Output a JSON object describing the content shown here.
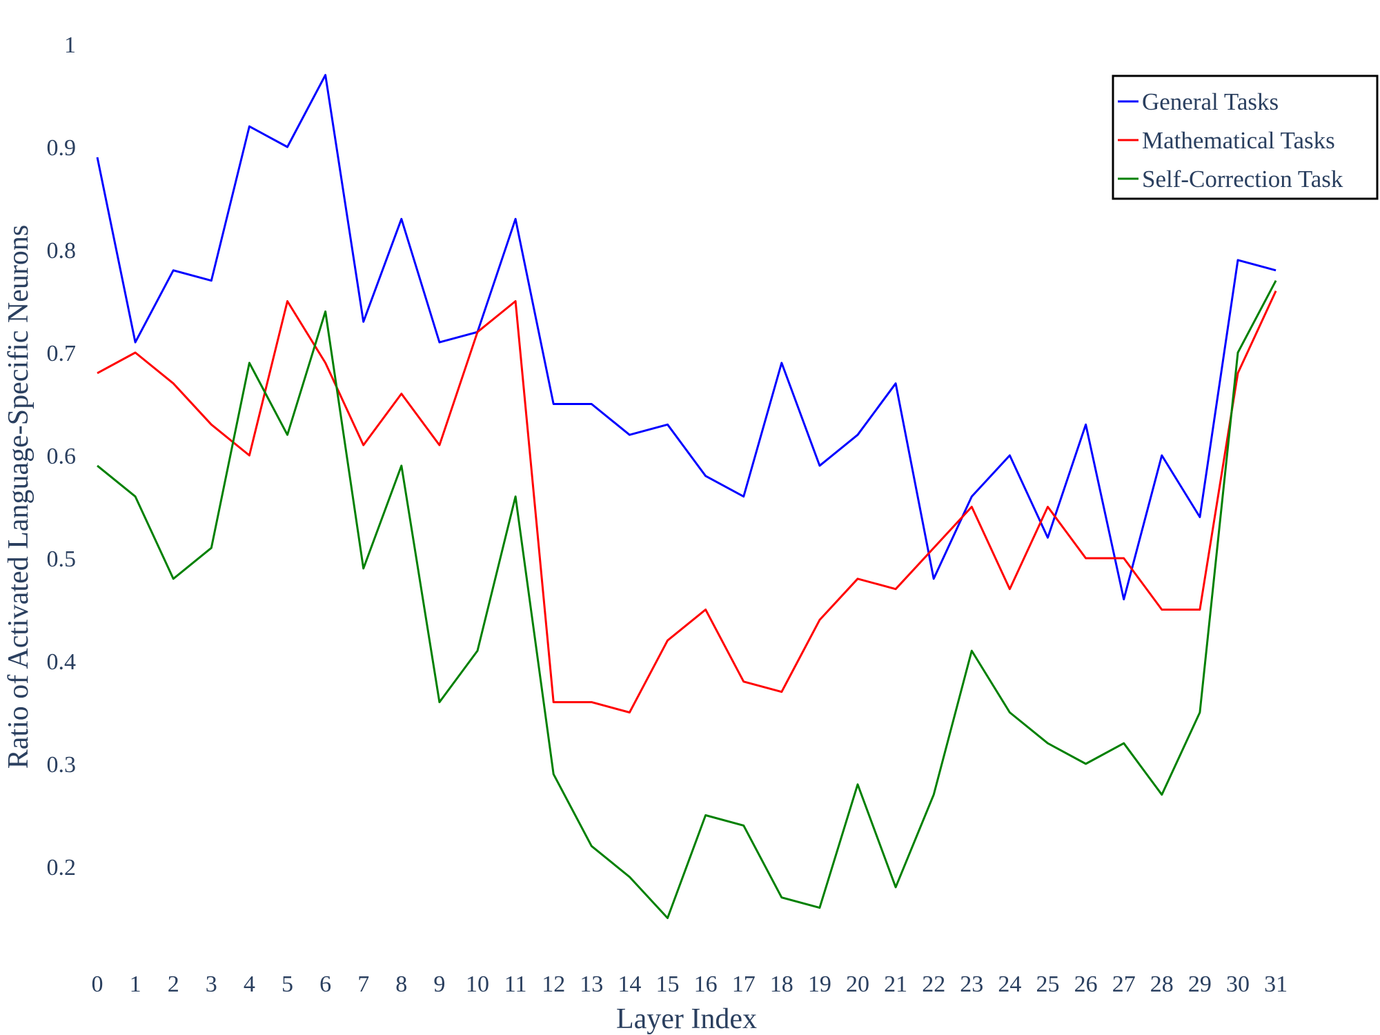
{
  "chart_data": {
    "type": "line",
    "title": "",
    "xlabel": "Layer Index",
    "ylabel": "Ratio of Activated Language-Specific Neurons",
    "x": [
      0,
      1,
      2,
      3,
      4,
      5,
      6,
      7,
      8,
      9,
      10,
      11,
      12,
      13,
      14,
      15,
      16,
      17,
      18,
      19,
      20,
      21,
      22,
      23,
      24,
      25,
      26,
      27,
      28,
      29,
      30,
      31
    ],
    "xticks": [
      "0",
      "1",
      "2",
      "3",
      "4",
      "5",
      "6",
      "7",
      "8",
      "9",
      "10",
      "11",
      "12",
      "13",
      "14",
      "15",
      "16",
      "17",
      "18",
      "19",
      "20",
      "21",
      "22",
      "23",
      "24",
      "25",
      "26",
      "27",
      "28",
      "29",
      "30",
      "31"
    ],
    "yticks": [
      "0.2",
      "0.3",
      "0.4",
      "0.5",
      "0.6",
      "0.7",
      "0.8",
      "0.9",
      "1"
    ],
    "ytick_values": [
      0.2,
      0.3,
      0.4,
      0.5,
      0.6,
      0.7,
      0.8,
      0.9,
      1.0
    ],
    "ylim": [
      0.1,
      1.0
    ],
    "grid": false,
    "legend_position": "top-right",
    "series": [
      {
        "name": "General Tasks",
        "color": "#0000ff",
        "values": [
          0.89,
          0.71,
          0.78,
          0.77,
          0.92,
          0.9,
          0.97,
          0.73,
          0.83,
          0.71,
          0.72,
          0.83,
          0.65,
          0.65,
          0.62,
          0.63,
          0.58,
          0.56,
          0.69,
          0.59,
          0.62,
          0.67,
          0.48,
          0.56,
          0.6,
          0.52,
          0.63,
          0.46,
          0.6,
          0.54,
          0.79,
          0.78
        ]
      },
      {
        "name": "Mathematical Tasks",
        "color": "#ff0000",
        "values": [
          0.68,
          0.7,
          0.67,
          0.63,
          0.6,
          0.75,
          0.69,
          0.61,
          0.66,
          0.61,
          0.72,
          0.75,
          0.36,
          0.36,
          0.35,
          0.42,
          0.45,
          0.38,
          0.37,
          0.44,
          0.48,
          0.47,
          0.51,
          0.55,
          0.47,
          0.55,
          0.5,
          0.5,
          0.45,
          0.45,
          0.68,
          0.76
        ]
      },
      {
        "name": "Self-Correction Task",
        "color": "#008000",
        "values": [
          0.59,
          0.56,
          0.48,
          0.51,
          0.69,
          0.62,
          0.74,
          0.49,
          0.59,
          0.36,
          0.41,
          0.56,
          0.29,
          0.22,
          0.19,
          0.15,
          0.25,
          0.24,
          0.17,
          0.16,
          0.28,
          0.18,
          0.27,
          0.41,
          0.35,
          0.32,
          0.3,
          0.32,
          0.27,
          0.35,
          0.7,
          0.77
        ]
      }
    ]
  }
}
